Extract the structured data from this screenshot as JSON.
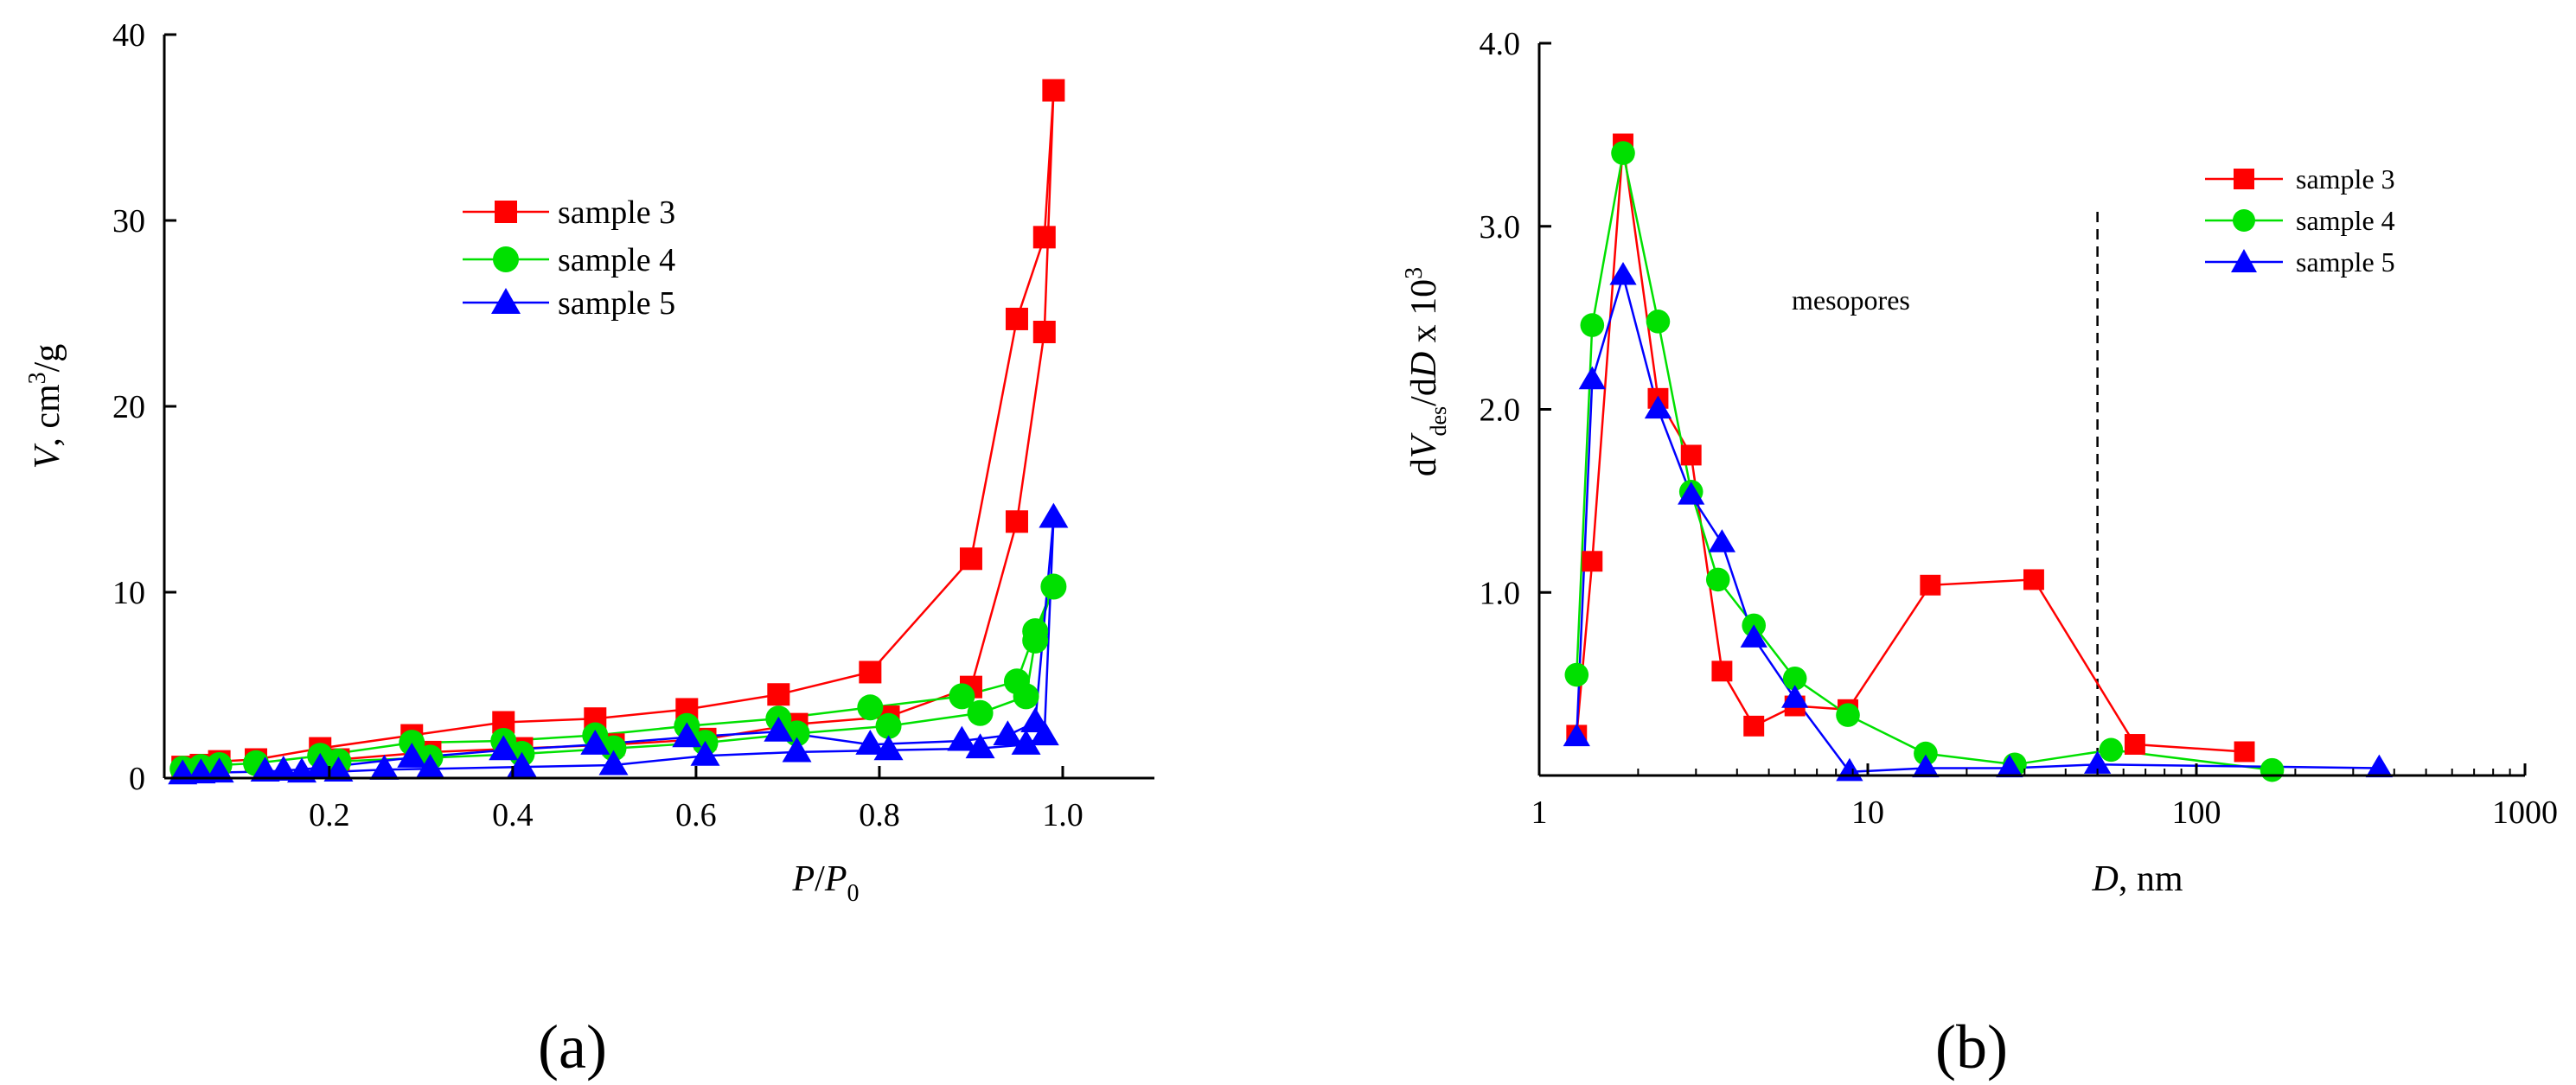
{
  "panel_labels": {
    "a": "(a)",
    "b": "(b)"
  },
  "colors": {
    "sample3": "#ff0000",
    "sample4": "#00e000",
    "sample5": "#0000ff",
    "axis": "#000000"
  },
  "chart_data": [
    {
      "id": "a",
      "type": "line",
      "title": "",
      "xlabel": {
        "italic": "P",
        "slash": "/",
        "italic2": "P",
        "sub": "0"
      },
      "ylabel": {
        "italic": "V",
        "text": ", cm",
        "sup": "3",
        "tail": "/g"
      },
      "xlim": [
        0.02,
        1.1
      ],
      "ylim": [
        0,
        40
      ],
      "xticks": [
        0.2,
        0.4,
        0.6,
        0.8,
        1.0
      ],
      "xtick_labels": [
        "0.2",
        "0.4",
        "0.6",
        "0.8",
        "1.0"
      ],
      "yticks": [
        0,
        10,
        20,
        30,
        40
      ],
      "ytick_labels": [
        "0",
        "10",
        "20",
        "30",
        "40"
      ],
      "legend": [
        "sample 3",
        "sample 4",
        "sample 5"
      ],
      "series": [
        {
          "name": "sample 3",
          "marker": "square",
          "color": "#ff0000",
          "points": [
            [
              0.04,
              0.6
            ],
            [
              0.06,
              0.7
            ],
            [
              0.08,
              0.9
            ],
            [
              0.12,
              1.0
            ],
            [
              0.19,
              1.6
            ],
            [
              0.29,
              2.3
            ],
            [
              0.39,
              3.0
            ],
            [
              0.49,
              3.2
            ],
            [
              0.59,
              3.7
            ],
            [
              0.69,
              4.5
            ],
            [
              0.79,
              5.7
            ],
            [
              0.9,
              11.8
            ],
            [
              0.95,
              24.7
            ],
            [
              0.98,
              29.1
            ],
            [
              0.99,
              37.0
            ],
            [
              0.98,
              24.0
            ],
            [
              0.95,
              13.8
            ],
            [
              0.9,
              4.9
            ],
            [
              0.81,
              3.3
            ],
            [
              0.71,
              2.9
            ],
            [
              0.61,
              2.1
            ],
            [
              0.51,
              1.8
            ],
            [
              0.41,
              1.6
            ],
            [
              0.31,
              1.4
            ],
            [
              0.21,
              1.0
            ]
          ]
        },
        {
          "name": "sample 4",
          "marker": "circle",
          "color": "#00e000",
          "points": [
            [
              0.04,
              0.5
            ],
            [
              0.06,
              0.6
            ],
            [
              0.08,
              0.7
            ],
            [
              0.12,
              0.8
            ],
            [
              0.19,
              1.2
            ],
            [
              0.29,
              1.9
            ],
            [
              0.39,
              2.0
            ],
            [
              0.49,
              2.3
            ],
            [
              0.59,
              2.8
            ],
            [
              0.69,
              3.2
            ],
            [
              0.79,
              3.8
            ],
            [
              0.89,
              4.4
            ],
            [
              0.95,
              5.2
            ],
            [
              0.97,
              7.9
            ],
            [
              0.99,
              10.3
            ],
            [
              0.97,
              7.4
            ],
            [
              0.96,
              4.4
            ],
            [
              0.91,
              3.5
            ],
            [
              0.81,
              2.8
            ],
            [
              0.71,
              2.4
            ],
            [
              0.61,
              1.9
            ],
            [
              0.51,
              1.6
            ],
            [
              0.41,
              1.3
            ],
            [
              0.31,
              1.1
            ],
            [
              0.21,
              0.9
            ]
          ]
        },
        {
          "name": "sample 5",
          "marker": "triangle",
          "color": "#0000ff",
          "points": [
            [
              0.04,
              0.2
            ],
            [
              0.06,
              0.25
            ],
            [
              0.08,
              0.3
            ],
            [
              0.13,
              0.35
            ],
            [
              0.15,
              0.4
            ],
            [
              0.19,
              0.55
            ],
            [
              0.29,
              1.1
            ],
            [
              0.39,
              1.5
            ],
            [
              0.49,
              1.8
            ],
            [
              0.59,
              2.2
            ],
            [
              0.69,
              2.5
            ],
            [
              0.79,
              1.8
            ],
            [
              0.89,
              2.0
            ],
            [
              0.94,
              2.3
            ],
            [
              0.97,
              3.0
            ],
            [
              0.99,
              14.0
            ],
            [
              0.98,
              2.3
            ],
            [
              0.96,
              1.8
            ],
            [
              0.91,
              1.6
            ],
            [
              0.81,
              1.5
            ],
            [
              0.71,
              1.4
            ],
            [
              0.61,
              1.2
            ],
            [
              0.51,
              0.7
            ],
            [
              0.41,
              0.6
            ],
            [
              0.31,
              0.5
            ],
            [
              0.26,
              0.45
            ],
            [
              0.21,
              0.35
            ],
            [
              0.17,
              0.3
            ]
          ]
        }
      ]
    },
    {
      "id": "b",
      "type": "line",
      "title": "",
      "xscale": "log",
      "xlabel": {
        "italic": "D",
        "text": ", nm"
      },
      "ylabel": {
        "d1": "d",
        "italic": "V",
        "sub": "des",
        "mid": "/d",
        "italic2": "D",
        "tail": " x 10",
        "sup": "3"
      },
      "xlim": [
        1,
        1000
      ],
      "ylim": [
        0,
        4.0
      ],
      "xticks": [
        1,
        10,
        100,
        1000
      ],
      "xtick_labels": [
        "1",
        "10",
        "100",
        "1000"
      ],
      "yticks": [
        1.0,
        2.0,
        3.0,
        4.0
      ],
      "ytick_labels": [
        "1.0",
        "2.0",
        "3.0",
        "4.0"
      ],
      "annotation": {
        "text": "mesopores",
        "at_x": 3.5,
        "at_y": 2.6
      },
      "vline_x": 50,
      "legend": [
        "sample 3",
        "sample 4",
        "sample 5"
      ],
      "series": [
        {
          "name": "sample 3",
          "marker": "square",
          "color": "#ff0000",
          "points": [
            [
              1.3,
              0.22
            ],
            [
              1.45,
              1.17
            ],
            [
              1.8,
              3.45
            ],
            [
              2.3,
              2.06
            ],
            [
              2.9,
              1.75
            ],
            [
              3.6,
              0.57
            ],
            [
              4.5,
              0.27
            ],
            [
              6,
              0.38
            ],
            [
              8.7,
              0.36
            ],
            [
              15.5,
              1.04
            ],
            [
              32,
              1.07
            ],
            [
              65,
              0.17
            ],
            [
              140,
              0.13
            ]
          ]
        },
        {
          "name": "sample 4",
          "marker": "circle",
          "color": "#00e000",
          "points": [
            [
              1.3,
              0.55
            ],
            [
              1.45,
              2.46
            ],
            [
              1.8,
              3.4
            ],
            [
              2.3,
              2.48
            ],
            [
              2.9,
              1.55
            ],
            [
              3.5,
              1.07
            ],
            [
              4.5,
              0.82
            ],
            [
              6,
              0.53
            ],
            [
              8.7,
              0.33
            ],
            [
              15,
              0.12
            ],
            [
              28,
              0.06
            ],
            [
              55,
              0.14
            ],
            [
              170,
              0.03
            ]
          ]
        },
        {
          "name": "sample 5",
          "marker": "triangle",
          "color": "#0000ff",
          "points": [
            [
              1.3,
              0.21
            ],
            [
              1.45,
              2.16
            ],
            [
              1.8,
              2.73
            ],
            [
              2.3,
              2.0
            ],
            [
              2.9,
              1.53
            ],
            [
              3.6,
              1.27
            ],
            [
              4.5,
              0.75
            ],
            [
              6,
              0.42
            ],
            [
              8.8,
              0.02
            ],
            [
              15,
              0.04
            ],
            [
              27,
              0.04
            ],
            [
              50,
              0.06
            ],
            [
              360,
              0.04
            ]
          ]
        }
      ]
    }
  ]
}
